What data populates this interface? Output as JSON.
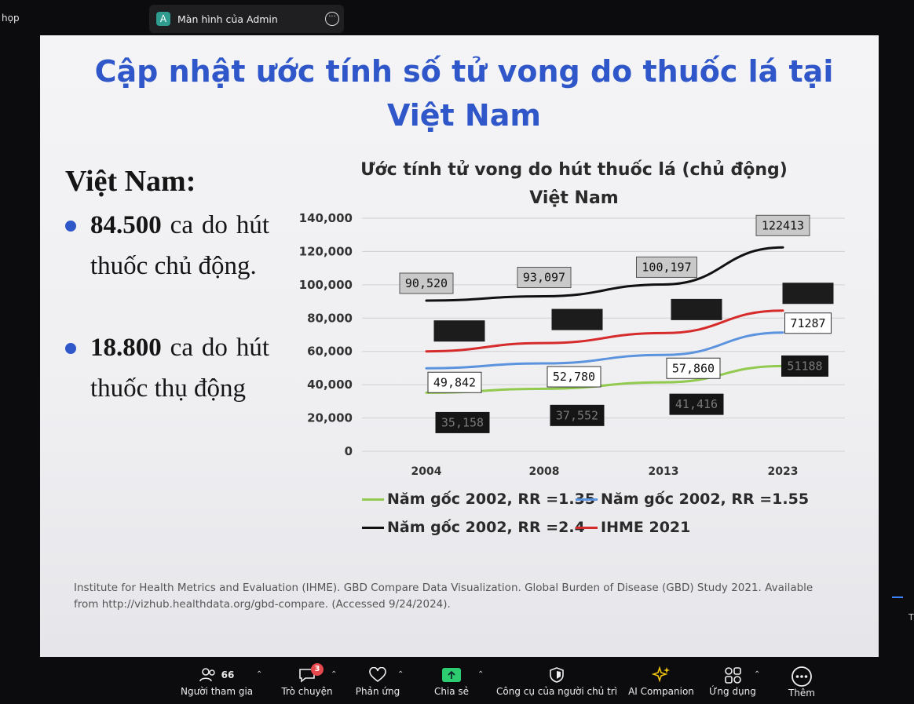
{
  "top_left_text": "họp",
  "share_bar": {
    "avatar_letter": "A",
    "title": "Màn hình của Admin",
    "more_glyph": "···"
  },
  "slide": {
    "title_line1": "Cập nhật ước tính số tử vong do thuốc lá tại",
    "title_line2": "Việt Nam",
    "left_heading": "Việt Nam:",
    "bullets": [
      {
        "number": "84.500",
        "text": " ca do hút thuốc chủ động."
      },
      {
        "number": "18.800",
        "text": " ca do hút thuốc thụ động"
      }
    ],
    "chart_title_line1": "Ước tính tử vong do hút thuốc lá (chủ động)",
    "chart_title_line2": "Việt Nam",
    "citation_line1": "Institute for Health Metrics and Evaluation (IHME). GBD Compare Data Visualization. Global Burden of Disease (GBD) Study 2021. Available",
    "citation_line2": "from http://vizhub.healthdata.org/gbd-compare. (Accessed 9/24/2024)."
  },
  "chart_data": {
    "type": "line",
    "title": "Ước tính tử vong do hút thuốc lá (chủ động) Việt Nam",
    "categories": [
      "2004",
      "2008",
      "2013",
      "2023"
    ],
    "ylim": [
      0,
      140000
    ],
    "yticks": [
      "0",
      "20,000",
      "40,000",
      "60,000",
      "80,000",
      "100,000",
      "120,000",
      "140,000"
    ],
    "grid": true,
    "legend_position": "bottom",
    "series": [
      {
        "name": "Năm gốc 2002, RR =1.35",
        "color": "#92c94f",
        "values": [
          35158,
          37552,
          41416,
          51188
        ],
        "labels": [
          "35,158",
          "37,552",
          "41,416",
          "51188"
        ],
        "label_style": "dark"
      },
      {
        "name": "Năm gốc 2002, RR =1.55",
        "color": "#5b93de",
        "values": [
          49842,
          52780,
          57860,
          71287
        ],
        "labels": [
          "49,842",
          "52,780",
          "57,860",
          "71287"
        ],
        "label_style": "white"
      },
      {
        "name": "Năm gốc 2002, RR =2.4",
        "color": "#111111",
        "values": [
          90520,
          93097,
          100197,
          122413
        ],
        "labels": [
          "90,520",
          "93,097",
          "100,197",
          "122413"
        ],
        "label_style": "gray"
      },
      {
        "name": "IHME 2021",
        "color": "#d62b2b",
        "values": [
          60000,
          65000,
          71000,
          84500
        ],
        "labels": [
          "",
          "",
          "",
          ""
        ],
        "label_style": "obscured"
      }
    ]
  },
  "toolbar": {
    "participants_count": "66",
    "participants_label": "Người tham gia",
    "chat_badge": "3",
    "chat_label": "Trò chuyện",
    "react_label": "Phản ứng",
    "share_label": "Chia sẻ",
    "host_tools_label": "Công cụ của người chủ trì",
    "ai_label": "AI Companion",
    "apps_label": "Ứng dụng",
    "more_label": "Thêm"
  }
}
